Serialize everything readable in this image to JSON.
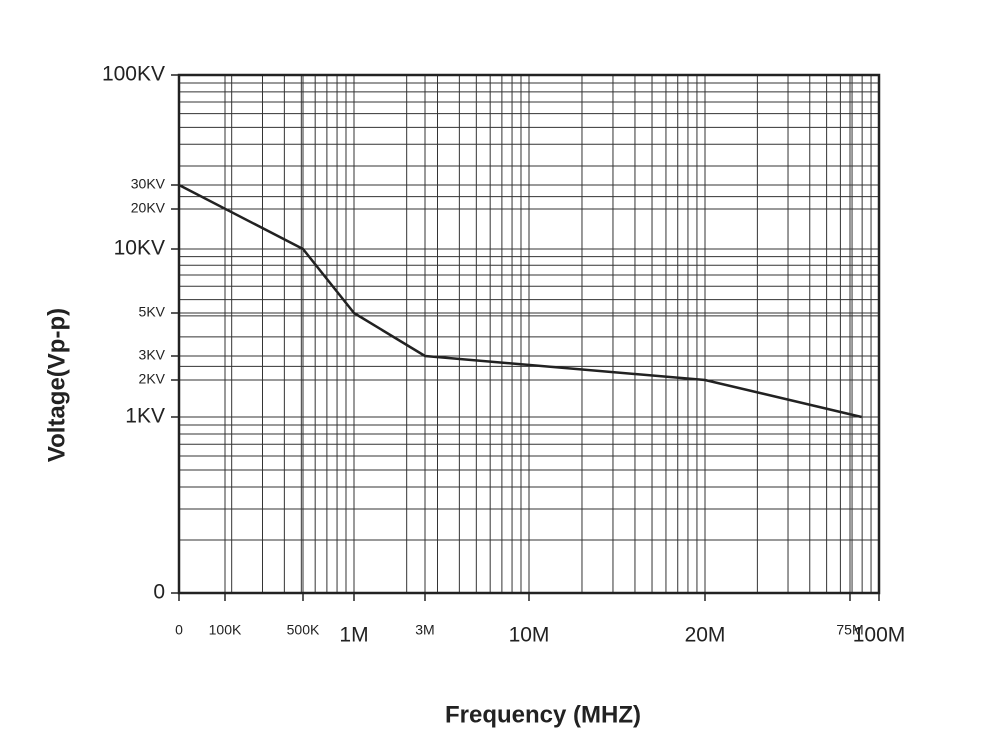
{
  "chart_data": {
    "type": "line",
    "x_label": "Frequency (MHZ)",
    "y_label": "Voltage(Vp-p)",
    "x": [
      0,
      500000,
      1000000,
      3000000,
      20000000,
      85000000
    ],
    "series": [
      {
        "color": "#222222",
        "values": [
          30000,
          10000,
          5000,
          3000,
          2000,
          1000
        ]
      }
    ],
    "xlim": [
      0,
      100000000
    ],
    "xticks": [
      0,
      {
        "value": 100000,
        "label": "100K"
      },
      {
        "value": 500000,
        "label": "500K"
      },
      {
        "value": 1000000,
        "label": "1M"
      },
      {
        "value": 3000000,
        "label": "3M"
      },
      {
        "value": 10000000,
        "label": "10M"
      },
      {
        "value": 20000000,
        "label": "20M"
      },
      {
        "value": 75000000,
        "label": "75M"
      },
      {
        "value": 100000000,
        "label": "100M"
      }
    ],
    "ylim": [
      0,
      100000
    ],
    "yticks": [
      0,
      {
        "value": 1000,
        "label": "1KV"
      },
      {
        "value": 2000,
        "label": "2KV"
      },
      {
        "value": 3000,
        "label": "3KV"
      },
      {
        "value": 5000,
        "label": "5KV"
      },
      {
        "value": 10000,
        "label": "10KV"
      },
      {
        "value": 20000,
        "label": "20KV"
      },
      {
        "value": 30000,
        "label": "30KV"
      },
      {
        "value": 100000,
        "label": "100KV"
      }
    ],
    "grid": true
  }
}
